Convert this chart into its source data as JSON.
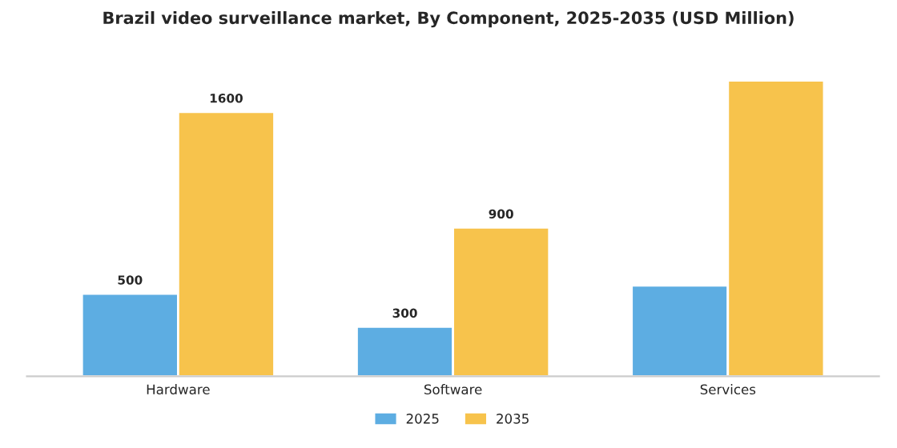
{
  "chart_data": {
    "type": "bar",
    "title": "Brazil video surveillance market, By Component, 2025-2035 (USD Million)",
    "categories": [
      "Hardware",
      "Software",
      "Services"
    ],
    "series": [
      {
        "name": "2025",
        "color": "#5dade2",
        "values": [
          500,
          300,
          550
        ],
        "value_labels": [
          "500",
          "300",
          null
        ]
      },
      {
        "name": "2035",
        "color": "#f7c34c",
        "values": [
          1600,
          900,
          1790
        ],
        "value_labels": [
          "1600",
          "900",
          null
        ]
      }
    ],
    "legend": "bottom",
    "grid": false
  }
}
